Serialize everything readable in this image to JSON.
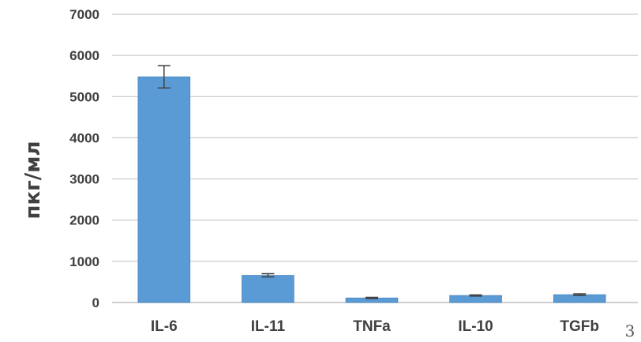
{
  "chart_data": {
    "type": "bar",
    "title": "",
    "xlabel": "",
    "ylabel": "пкг/мл",
    "categories": [
      "IL-6",
      "IL-11",
      "TNFa",
      "IL-10",
      "TGFb"
    ],
    "series": [
      {
        "values": [
          5480,
          660,
          110,
          170,
          190
        ],
        "error": [
          270,
          40,
          15,
          15,
          20
        ]
      }
    ],
    "ylim": [
      0,
      7000
    ],
    "yticks": [
      0,
      1000,
      2000,
      3000,
      4000,
      5000,
      6000,
      7000
    ],
    "grid": true,
    "legend": "none",
    "colors": {
      "bar": "#5b9bd5",
      "grid": "#bfbfbf",
      "error": "#404040"
    }
  },
  "page_number": "3"
}
